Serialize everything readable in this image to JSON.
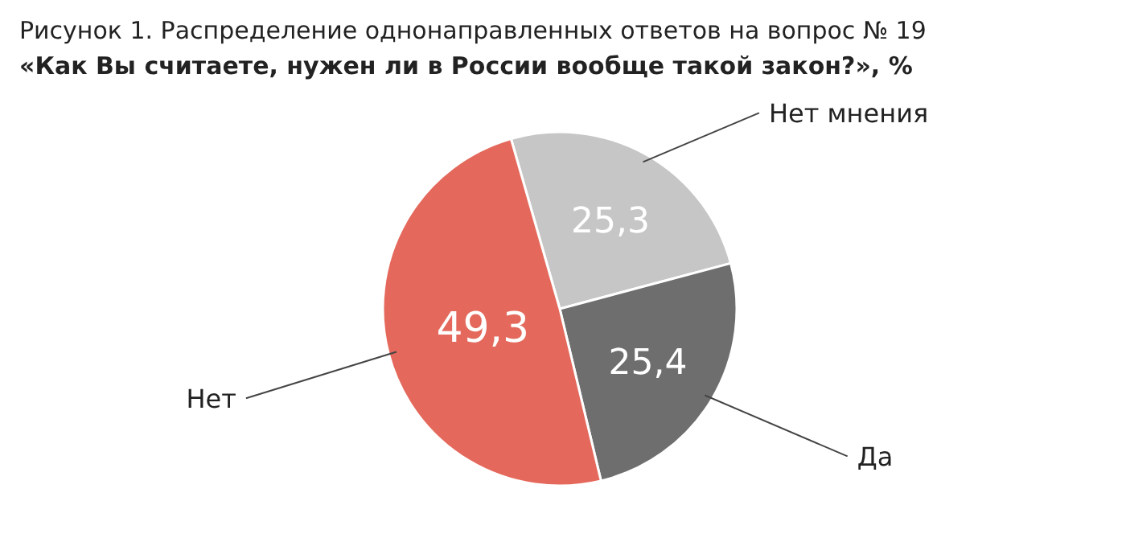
{
  "chart_data": {
    "type": "pie",
    "title": "Рисунок 1. Распределение однонаправленных ответов на вопрос № 19",
    "subtitle": "«Как Вы считаете, нужен ли в России вообще такой закон?», %",
    "categories": [
      "Нет мнения",
      "Да",
      "Нет"
    ],
    "values": [
      25.3,
      25.4,
      49.3
    ],
    "value_labels": [
      "25,3",
      "25,4",
      "49,3"
    ],
    "colors": [
      "#c6c6c6",
      "#6e6e6e",
      "#e4695c"
    ]
  }
}
